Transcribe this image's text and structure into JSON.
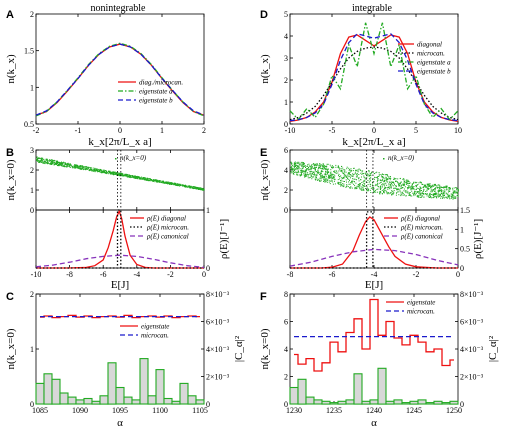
{
  "colors": {
    "red": "#ee1111",
    "blue": "#1a1acc",
    "green": "#22aa22",
    "purple": "#8833bb",
    "black": "#000000",
    "grayfill": "#d8d8d8"
  },
  "headers": {
    "left": "nonintegrable",
    "right": "integrable"
  },
  "chart_data": [
    {
      "id": "A",
      "type": "line",
      "letter": "A",
      "xlabel": "k_x[2π/L_x a]",
      "ylabel": "n(k_x)",
      "xlim": [
        -2,
        2
      ],
      "ylim": [
        0.5,
        2.0
      ],
      "xticks": [
        -2,
        -1,
        0,
        1,
        2
      ],
      "yticks": [
        0.5,
        1,
        1.5,
        2
      ],
      "x": [
        -2,
        -1.75,
        -1.5,
        -1.25,
        -1,
        -0.75,
        -0.5,
        -0.25,
        0,
        0.25,
        0.5,
        0.75,
        1,
        1.25,
        1.5,
        1.75,
        2
      ],
      "series": [
        {
          "name": "diag./microcan.",
          "color": "red",
          "style": "solid",
          "values": [
            0.62,
            0.67,
            0.79,
            0.95,
            1.12,
            1.3,
            1.45,
            1.55,
            1.59,
            1.55,
            1.45,
            1.3,
            1.12,
            0.95,
            0.79,
            0.67,
            0.62
          ]
        },
        {
          "name": "eigenstate a",
          "color": "green",
          "style": "dashdot",
          "values": [
            0.61,
            0.67,
            0.8,
            0.96,
            1.13,
            1.31,
            1.46,
            1.56,
            1.6,
            1.56,
            1.46,
            1.31,
            1.13,
            0.96,
            0.8,
            0.67,
            0.61
          ]
        },
        {
          "name": "eigenstate b",
          "color": "blue",
          "style": "dashed",
          "values": [
            0.62,
            0.68,
            0.8,
            0.96,
            1.12,
            1.3,
            1.45,
            1.55,
            1.59,
            1.55,
            1.45,
            1.3,
            1.12,
            0.96,
            0.8,
            0.68,
            0.62
          ]
        }
      ]
    },
    {
      "id": "B",
      "type": "scatter+line",
      "letter": "B",
      "xlabel": "E[J]",
      "ylabel_top": "n(k_x=0)",
      "ylabel_bottom": "ρ(E)[J⁻¹]",
      "xlim": [
        -10,
        0
      ],
      "xticks": [
        -10,
        -8,
        -6,
        -4,
        -2,
        0
      ],
      "top_ylim": [
        0,
        3
      ],
      "top_yticks": [
        0,
        1,
        2,
        3
      ],
      "bottom_ylim": [
        0,
        1
      ],
      "bottom_yticks": [
        0,
        1
      ],
      "scatter_name": "n(k_x=0)",
      "scatter_color": "green",
      "scatter_fit": {
        "x": [
          -10,
          -8,
          -6,
          -4,
          -2,
          0
        ],
        "y": [
          2.55,
          2.25,
          1.95,
          1.65,
          1.35,
          1.05
        ],
        "spread": [
          0.14,
          0.1,
          0.08,
          0.06,
          0.05,
          0.05
        ]
      },
      "vlines": [
        -5.15,
        -4.95
      ],
      "series": [
        {
          "name": "ρ(E) diagonal",
          "color": "red",
          "style": "solid",
          "x": [
            -10,
            -8,
            -7,
            -6.5,
            -6,
            -5.7,
            -5.4,
            -5.2,
            -5.05,
            -4.9,
            -4.7,
            -4.4,
            -4,
            -3.5,
            -3,
            -2,
            0
          ],
          "values": [
            0,
            0,
            0.01,
            0.04,
            0.14,
            0.35,
            0.65,
            0.88,
            0.98,
            0.85,
            0.55,
            0.22,
            0.06,
            0.01,
            0,
            0,
            0
          ]
        },
        {
          "name": "ρ(E) microcan.",
          "color": "black",
          "style": "dotted",
          "x": [
            -10,
            -5.15,
            -5.15,
            -4.95,
            -4.95,
            0
          ],
          "values": [
            0,
            0,
            1.0,
            1.0,
            0,
            0
          ]
        },
        {
          "name": "ρ(E) canonical",
          "color": "purple",
          "style": "dashed",
          "x": [
            -10,
            -9,
            -8,
            -7,
            -6,
            -5,
            -4,
            -3,
            -2,
            -1,
            0
          ],
          "values": [
            0.02,
            0.05,
            0.1,
            0.16,
            0.2,
            0.22,
            0.2,
            0.15,
            0.09,
            0.04,
            0.01
          ]
        }
      ]
    },
    {
      "id": "C",
      "type": "line+bar",
      "letter": "C",
      "xlabel": "α",
      "ylabel_left": "n(k_x=0)",
      "ylabel_right": "|C_α|²",
      "xlim": [
        1085,
        1105
      ],
      "xticks": [
        1085,
        1090,
        1095,
        1100,
        1105
      ],
      "ylim": [
        0,
        2
      ],
      "yticks": [
        0,
        1,
        2
      ],
      "right_ylim": [
        0,
        0.008
      ],
      "right_yticks": [
        "0",
        "2×10⁻³",
        "4×10⁻³",
        "6×10⁻³",
        "8×10⁻³"
      ],
      "series": [
        {
          "name": "eigenstate",
          "color": "red",
          "style": "step",
          "x": [
            1085,
            1086,
            1087,
            1088,
            1089,
            1090,
            1091,
            1092,
            1093,
            1094,
            1095,
            1096,
            1097,
            1098,
            1099,
            1100,
            1101,
            1102,
            1103,
            1104,
            1105
          ],
          "values": [
            1.58,
            1.6,
            1.57,
            1.59,
            1.61,
            1.58,
            1.6,
            1.57,
            1.59,
            1.6,
            1.58,
            1.61,
            1.57,
            1.59,
            1.6,
            1.58,
            1.6,
            1.57,
            1.59,
            1.6,
            1.59
          ]
        },
        {
          "name": "microcan.",
          "color": "blue",
          "style": "dashed",
          "x": [
            1085,
            1105
          ],
          "values": [
            1.59,
            1.59
          ]
        }
      ],
      "bars": {
        "color": "green",
        "x": [
          1085,
          1086,
          1087,
          1088,
          1089,
          1090,
          1091,
          1092,
          1093,
          1094,
          1095,
          1096,
          1097,
          1098,
          1099,
          1100,
          1101,
          1102,
          1103,
          1104,
          1105
        ],
        "values": [
          0.0015,
          0.0022,
          0.0018,
          0.0008,
          0.0005,
          0.0003,
          0.0004,
          0.0002,
          0.0006,
          0.003,
          0.0012,
          0.0005,
          0.0003,
          0.0033,
          0.0006,
          0.0025,
          0.0004,
          0.0002,
          0.0015,
          0.0006,
          0.0003
        ]
      }
    },
    {
      "id": "D",
      "type": "line",
      "letter": "D",
      "xlabel": "k_x[2π/L_x a]",
      "ylabel": "n(k_x)",
      "xlim": [
        -10,
        10
      ],
      "ylim": [
        0,
        5
      ],
      "xticks": [
        -10,
        -5,
        0,
        5,
        10
      ],
      "yticks": [
        0,
        1,
        2,
        3,
        4,
        5
      ],
      "x": [
        -10,
        -9,
        -8,
        -7,
        -6,
        -5,
        -4,
        -3,
        -2,
        -1,
        0,
        1,
        2,
        3,
        4,
        5,
        6,
        7,
        8,
        9,
        10
      ],
      "series": [
        {
          "name": "diagonal",
          "color": "red",
          "style": "solid",
          "values": [
            0.12,
            0.18,
            0.3,
            0.55,
            1.0,
            1.9,
            3.2,
            3.95,
            4.05,
            3.8,
            3.55,
            3.8,
            4.05,
            3.95,
            3.2,
            1.9,
            1.0,
            0.55,
            0.3,
            0.18,
            0.12
          ]
        },
        {
          "name": "microcan.",
          "color": "black",
          "style": "dotted",
          "values": [
            0.2,
            0.3,
            0.5,
            0.8,
            1.3,
            1.9,
            2.5,
            3.0,
            3.3,
            3.45,
            3.5,
            3.45,
            3.3,
            3.0,
            2.5,
            1.9,
            1.3,
            0.8,
            0.5,
            0.3,
            0.2
          ]
        },
        {
          "name": "eigenstate a",
          "color": "green",
          "style": "dashdot",
          "values": [
            0.6,
            0.2,
            0.7,
            0.3,
            0.9,
            2.2,
            1.6,
            3.6,
            2.6,
            4.6,
            3.2,
            4.6,
            2.6,
            3.6,
            1.6,
            2.2,
            0.9,
            0.3,
            0.7,
            0.2,
            0.6
          ]
        },
        {
          "name": "eigenstate b",
          "color": "blue",
          "style": "dashed",
          "values": [
            0.15,
            0.2,
            0.3,
            0.5,
            0.9,
            1.8,
            2.9,
            3.7,
            4.1,
            4.0,
            3.9,
            4.0,
            4.1,
            3.7,
            2.9,
            1.8,
            0.9,
            0.5,
            0.3,
            0.2,
            0.15
          ]
        }
      ]
    },
    {
      "id": "E",
      "type": "scatter+line",
      "letter": "E",
      "xlabel": "E[J]",
      "ylabel_top": "n(k_x=0)",
      "ylabel_bottom": "ρ(E)[J⁻¹]",
      "xlim": [
        -8,
        0
      ],
      "xticks": [
        -8,
        -6,
        -4,
        -2,
        0
      ],
      "top_ylim": [
        0,
        6
      ],
      "top_yticks": [
        0,
        2,
        4,
        6
      ],
      "bottom_ylim": [
        0,
        1.5
      ],
      "bottom_yticks": [
        0,
        0.5,
        1,
        1.5
      ],
      "scatter_name": "n(k_x=0)",
      "scatter_color": "green",
      "scatter_fit": {
        "x": [
          -8,
          -6,
          -4,
          -2,
          0
        ],
        "y": [
          4.3,
          3.6,
          2.8,
          2.1,
          1.7
        ],
        "spread": [
          0.6,
          1.0,
          1.1,
          0.8,
          0.6
        ]
      },
      "vlines": [
        -4.35,
        -4.05
      ],
      "series": [
        {
          "name": "ρ(E) diagonal",
          "color": "red",
          "style": "solid",
          "x": [
            -8,
            -6.5,
            -6,
            -5.5,
            -5,
            -4.7,
            -4.4,
            -4.2,
            -4.0,
            -3.7,
            -3.3,
            -3,
            -2.5,
            -2,
            -1,
            0
          ],
          "values": [
            0,
            0,
            0.02,
            0.1,
            0.45,
            0.85,
            1.2,
            1.32,
            1.25,
            0.95,
            0.55,
            0.3,
            0.1,
            0.03,
            0,
            0
          ]
        },
        {
          "name": "ρ(E) microcan.",
          "color": "black",
          "style": "dotted",
          "x": [
            -8,
            -4.35,
            -4.35,
            -4.05,
            -4.05,
            0
          ],
          "values": [
            0,
            0,
            1.45,
            1.45,
            0,
            0
          ]
        },
        {
          "name": "ρ(E) canonical",
          "color": "purple",
          "style": "dashed",
          "x": [
            -8,
            -7,
            -6,
            -5,
            -4,
            -3,
            -2,
            -1,
            0
          ],
          "values": [
            0.05,
            0.15,
            0.3,
            0.42,
            0.48,
            0.45,
            0.35,
            0.2,
            0.08
          ]
        }
      ]
    },
    {
      "id": "F",
      "type": "line+bar",
      "letter": "F",
      "xlabel": "α",
      "ylabel_left": "n(k_x=0)",
      "ylabel_right": "|C_α|²",
      "xlim": [
        1230,
        1250
      ],
      "xticks": [
        1230,
        1235,
        1240,
        1245,
        1250
      ],
      "ylim": [
        0,
        8
      ],
      "yticks": [
        0,
        2,
        4,
        6,
        8
      ],
      "right_ylim": [
        0,
        0.008
      ],
      "right_yticks": [
        "0",
        "2×10⁻³",
        "4×10⁻³",
        "6×10⁻³",
        "8×10⁻³"
      ],
      "series": [
        {
          "name": "eigenstate",
          "color": "red",
          "style": "step",
          "x": [
            1230,
            1231,
            1232,
            1233,
            1234,
            1235,
            1236,
            1237,
            1238,
            1239,
            1240,
            1241,
            1242,
            1243,
            1244,
            1245,
            1246,
            1247,
            1248,
            1249,
            1250
          ],
          "values": [
            3.6,
            2.9,
            3.3,
            2.4,
            3.0,
            4.5,
            3.8,
            5.2,
            6.2,
            4.0,
            7.6,
            5.0,
            6.0,
            4.8,
            4.3,
            5.0,
            4.5,
            3.8,
            4.0,
            2.8,
            3.2
          ]
        },
        {
          "name": "microcan.",
          "color": "blue",
          "style": "dashed",
          "x": [
            1230,
            1250
          ],
          "values": [
            4.9,
            4.9
          ]
        }
      ],
      "bars": {
        "color": "green",
        "x": [
          1230,
          1231,
          1232,
          1233,
          1234,
          1235,
          1236,
          1237,
          1238,
          1239,
          1240,
          1241,
          1242,
          1243,
          1244,
          1245,
          1246,
          1247,
          1248,
          1249,
          1250
        ],
        "values": [
          0.0012,
          0.0018,
          0.0005,
          0.0003,
          0.0002,
          0.0001,
          0.0002,
          0.0003,
          0.0022,
          0.0002,
          0.0003,
          0.0026,
          0.0002,
          0.0003,
          0.0001,
          0.0002,
          0.0003,
          0.0001,
          0.0002,
          0.0001,
          0.0002
        ]
      }
    }
  ]
}
